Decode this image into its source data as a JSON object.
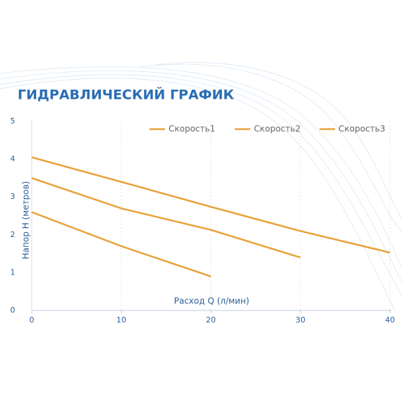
{
  "chart_data": {
    "type": "line",
    "title": "ГИДРАВЛИЧЕСКИЙ ГРАФИК",
    "x_label": "Расход Q (л/мин)",
    "y_label": "Напор H (метров)",
    "xlim": [
      0,
      40
    ],
    "ylim": [
      0,
      5
    ],
    "xticks": [
      0,
      10,
      20,
      30,
      40
    ],
    "yticks": [
      0,
      1,
      2,
      3,
      4,
      5
    ],
    "grid": true,
    "legend": "top-right",
    "series": [
      {
        "name": "Скорость1",
        "color": "#e8a23a",
        "x": [
          0,
          10,
          20,
          30,
          40
        ],
        "values": [
          4.05,
          3.4,
          2.74,
          2.1,
          1.53
        ]
      },
      {
        "name": "Скорость2",
        "color": "#e8a23a",
        "x": [
          0,
          10,
          20,
          30
        ],
        "values": [
          3.5,
          2.7,
          2.13,
          1.4
        ]
      },
      {
        "name": "Скорость3",
        "color": "#e8a23a",
        "x": [
          0,
          10,
          20
        ],
        "values": [
          2.6,
          1.7,
          0.9
        ]
      }
    ]
  }
}
